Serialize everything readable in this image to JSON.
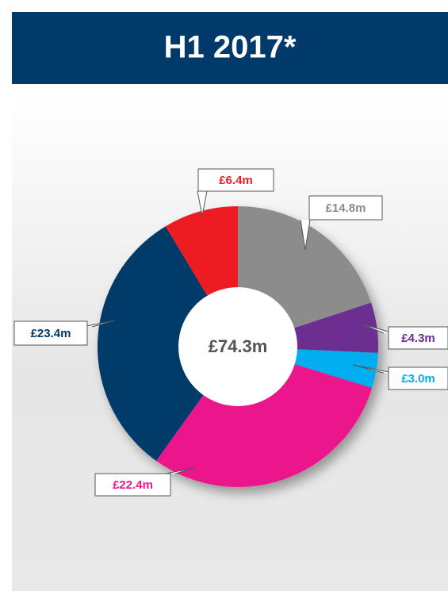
{
  "chart_data": {
    "type": "donut",
    "title": "H1 2017*",
    "center_label": "£74.3m",
    "values": [
      14.8,
      4.3,
      3.0,
      22.4,
      23.4,
      6.4
    ],
    "value_labels": [
      "£14.8m",
      "£4.3m",
      "£3.0m",
      "£22.4m",
      "£23.4m",
      "£6.4m"
    ],
    "colors": [
      "#8c8c8c",
      "#6c2d91",
      "#00aeef",
      "#ec178c",
      "#003a6b",
      "#ed1c24"
    ]
  }
}
